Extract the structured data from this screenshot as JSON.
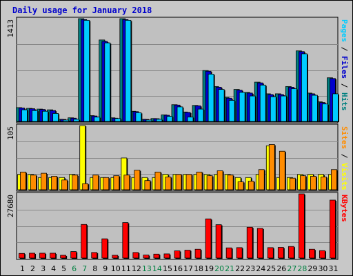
{
  "chart_data": {
    "type": "bar",
    "title": "Daily usage for January 2018",
    "days": [
      "1",
      "2",
      "3",
      "4",
      "5",
      "6",
      "7",
      "8",
      "9",
      "10",
      "11",
      "12",
      "13",
      "14",
      "15",
      "16",
      "17",
      "18",
      "19",
      "20",
      "21",
      "22",
      "23",
      "24",
      "25",
      "26",
      "27",
      "28",
      "29",
      "30",
      "31"
    ],
    "weekend_days": [
      "6",
      "7",
      "13",
      "14",
      "20",
      "21",
      "27",
      "28"
    ],
    "panels": [
      {
        "max_label": "1413",
        "max": 1413,
        "right_label": [
          {
            "text": "Pages",
            "color": "#00ccff"
          },
          {
            "text": " / ",
            "color": "#000000"
          },
          {
            "text": "Files",
            "color": "#0000cc"
          },
          {
            "text": " / ",
            "color": "#000000"
          },
          {
            "text": "Hits",
            "color": "#008080"
          }
        ],
        "series": [
          {
            "key": "hits",
            "color": "#008080",
            "values": [
              190,
              180,
              170,
              160,
              30,
              50,
              1413,
              80,
              1120,
              50,
              1413,
              140,
              30,
              40,
              90,
              230,
              130,
              220,
              700,
              480,
              330,
              440,
              400,
              540,
              380,
              380,
              480,
              970,
              390,
              270,
              600
            ]
          },
          {
            "key": "files",
            "color": "#0000cc",
            "values": [
              185,
              175,
              165,
              150,
              28,
              45,
              1400,
              75,
              1100,
              45,
              1400,
              135,
              28,
              38,
              85,
              225,
              125,
              215,
              690,
              470,
              320,
              430,
              390,
              530,
              370,
              370,
              470,
              960,
              380,
              260,
              590
            ]
          },
          {
            "key": "pages",
            "color": "#00ccff",
            "values": [
              160,
              150,
              140,
              110,
              20,
              30,
              1390,
              60,
              1080,
              40,
              1390,
              120,
              20,
              30,
              70,
              200,
              60,
              170,
              650,
              440,
              290,
              400,
              350,
              500,
              340,
              350,
              450,
              930,
              360,
              240,
              380
            ]
          }
        ]
      },
      {
        "max_label": "105",
        "max": 105,
        "right_label": [
          {
            "text": "Sites",
            "color": "#ff8c00"
          },
          {
            "text": " / ",
            "color": "#000000"
          },
          {
            "text": "Visits",
            "color": "#ffff00"
          }
        ],
        "series": [
          {
            "key": "visits",
            "color": "#ffff00",
            "values": [
              25,
              25,
              20,
              20,
              20,
              25,
              105,
              20,
              20,
              20,
              52,
              20,
              20,
              20,
              25,
              25,
              25,
              25,
              25,
              25,
              25,
              20,
              20,
              25,
              72,
              20,
              20,
              25,
              25,
              25,
              25
            ]
          },
          {
            "key": "sites",
            "color": "#ff8c00",
            "values": [
              29,
              24,
              27,
              22,
              16,
              24,
              10,
              24,
              20,
              23,
              24,
              32,
              15,
              29,
              21,
              25,
              25,
              29,
              23,
              31,
              24,
              13,
              14,
              33,
              74,
              63,
              19,
              23,
              22,
              21,
              33
            ]
          }
        ]
      },
      {
        "max_label": "27680",
        "max": 27680,
        "right_label": [
          {
            "text": "KBytes",
            "color": "#ff0000"
          }
        ],
        "series": [
          {
            "key": "kbytes",
            "color": "#ff0000",
            "values": [
              2000,
              2100,
              2100,
              2100,
              1200,
              2800,
              14500,
              2400,
              8300,
              1200,
              15300,
              2400,
              1300,
              1700,
              1800,
              3100,
              3400,
              3800,
              16900,
              14400,
              4400,
              4500,
              13300,
              12800,
              4500,
              4600,
              5000,
              27680,
              3800,
              3200,
              25000
            ]
          }
        ]
      }
    ]
  }
}
